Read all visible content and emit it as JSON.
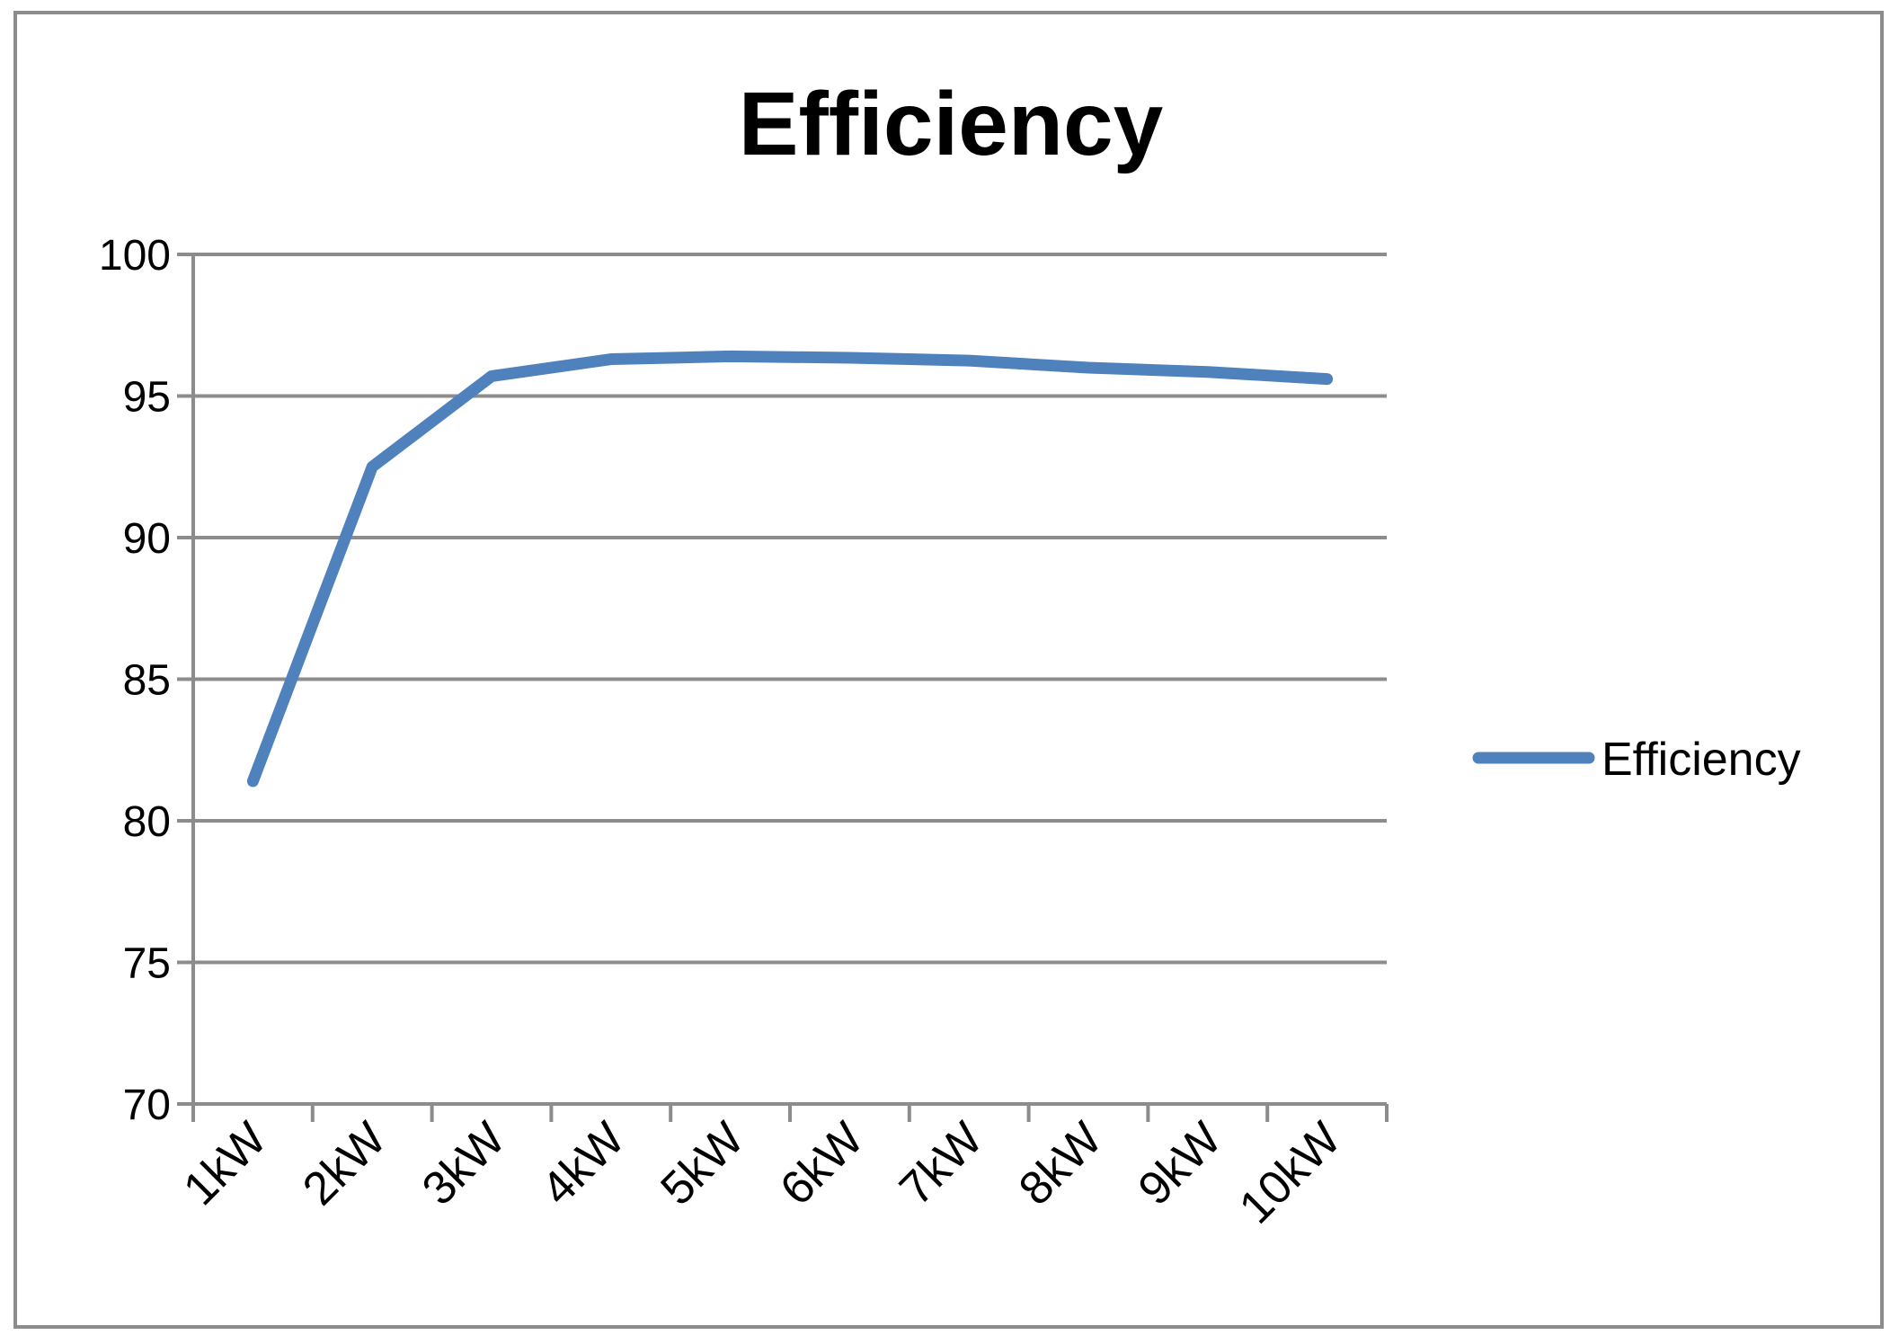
{
  "chart_data": {
    "type": "line",
    "title": "Efficiency",
    "xlabel": "",
    "ylabel": "",
    "categories": [
      "1kW",
      "2kW",
      "3kW",
      "4kW",
      "5kW",
      "6kW",
      "7kW",
      "8kW",
      "9kW",
      "10kW"
    ],
    "series": [
      {
        "name": "Efficiency",
        "color": "#4f81bd",
        "values": [
          81.4,
          92.5,
          95.7,
          96.3,
          96.4,
          96.35,
          96.25,
          96.0,
          95.85,
          95.6
        ]
      }
    ],
    "ylim": [
      70,
      100
    ],
    "yticks": [
      70,
      75,
      80,
      85,
      90,
      95,
      100
    ],
    "grid": true,
    "legend_position": "right",
    "x_tick_rotation": "-45deg"
  }
}
